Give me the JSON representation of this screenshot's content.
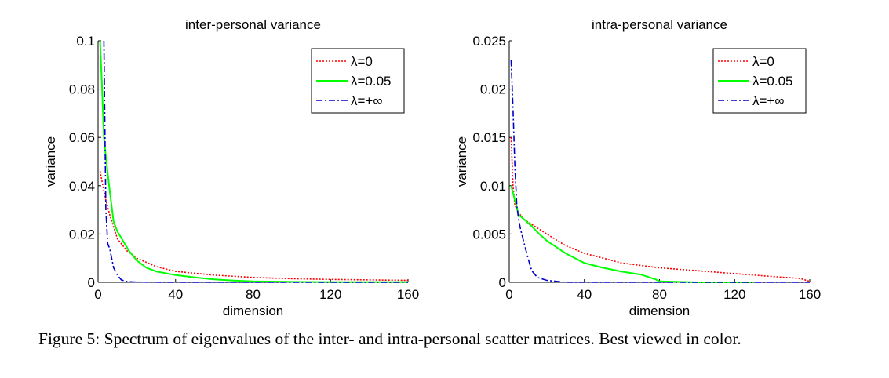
{
  "caption": "Figure 5: Spectrum of eigenvalues of the inter- and intra-personal scatter matrices. Best viewed in color.",
  "colors": {
    "lambda_0": "#ff0000",
    "lambda_005": "#00ff00",
    "lambda_inf": "#0000cc"
  },
  "chart_data": [
    {
      "type": "line",
      "title": "inter-personal variance",
      "xlabel": "dimension",
      "ylabel": "variance",
      "xlim": [
        0,
        160
      ],
      "ylim": [
        0,
        0.1
      ],
      "xticks": [
        0,
        40,
        80,
        120,
        160
      ],
      "xtick_labels": [
        "0",
        "40",
        "80",
        "120",
        "160"
      ],
      "yticks": [
        0,
        0.02,
        0.04,
        0.06,
        0.08,
        0.1
      ],
      "ytick_labels": [
        "0",
        "0.02",
        "0.04",
        "0.06",
        "0.08",
        "0.1"
      ],
      "legend_position": "top-right",
      "series": [
        {
          "name": "λ=0",
          "style": "dotted",
          "color": "#ff0000",
          "x": [
            1,
            2,
            4,
            6,
            8,
            10,
            15,
            20,
            30,
            40,
            60,
            80,
            100,
            120,
            140,
            160
          ],
          "y": [
            0.046,
            0.042,
            0.034,
            0.028,
            0.023,
            0.018,
            0.013,
            0.01,
            0.0065,
            0.0045,
            0.003,
            0.002,
            0.0015,
            0.0012,
            0.001,
            0.0008
          ]
        },
        {
          "name": "λ=0.05",
          "style": "solid",
          "color": "#00ff00",
          "x": [
            1,
            2,
            3,
            4,
            6,
            8,
            10,
            13,
            16,
            20,
            25,
            30,
            40,
            50,
            60,
            70,
            80,
            100,
            120,
            160
          ],
          "y": [
            0.1,
            0.082,
            0.06,
            0.052,
            0.038,
            0.025,
            0.021,
            0.017,
            0.013,
            0.009,
            0.006,
            0.0045,
            0.003,
            0.002,
            0.0012,
            0.0007,
            0.0004,
            0.0002,
            0.0001,
            0.0001
          ]
        },
        {
          "name": "λ=+∞",
          "style": "dashdot",
          "color": "#0000cc",
          "x": [
            3,
            4,
            5,
            6,
            7,
            8,
            10,
            12,
            15,
            20,
            40,
            160
          ],
          "y": [
            0.1,
            0.03,
            0.016,
            0.014,
            0.01,
            0.006,
            0.003,
            0.001,
            0.0003,
            0.0001,
            0.0,
            0.0
          ]
        }
      ]
    },
    {
      "type": "line",
      "title": "intra-personal variance",
      "xlabel": "dimension",
      "ylabel": "variance",
      "xlim": [
        0,
        160
      ],
      "ylim": [
        0,
        0.025
      ],
      "xticks": [
        0,
        40,
        80,
        120,
        160
      ],
      "xtick_labels": [
        "0",
        "40",
        "80",
        "120",
        "160"
      ],
      "yticks": [
        0,
        0.005,
        0.01,
        0.015,
        0.02,
        0.025
      ],
      "ytick_labels": [
        "0",
        "0.005",
        "0.01",
        "0.015",
        "0.02",
        "0.025"
      ],
      "legend_position": "top-right",
      "series": [
        {
          "name": "λ=0",
          "style": "dotted",
          "color": "#ff0000",
          "x": [
            1,
            2,
            3,
            5,
            8,
            12,
            16,
            20,
            30,
            40,
            60,
            80,
            100,
            120,
            140,
            155,
            160
          ],
          "y": [
            0.015,
            0.01,
            0.008,
            0.0072,
            0.0065,
            0.006,
            0.0055,
            0.005,
            0.0038,
            0.003,
            0.002,
            0.0015,
            0.0012,
            0.0009,
            0.0006,
            0.0004,
            0.0001
          ]
        },
        {
          "name": "λ=0.05",
          "style": "solid",
          "color": "#00ff00",
          "x": [
            1,
            3,
            5,
            8,
            12,
            16,
            20,
            30,
            40,
            50,
            60,
            70,
            78,
            80,
            100,
            130
          ],
          "y": [
            0.01,
            0.0085,
            0.007,
            0.0065,
            0.0058,
            0.005,
            0.0043,
            0.003,
            0.002,
            0.0015,
            0.0011,
            0.0008,
            0.0003,
            0.0001,
            0.0,
            0.0
          ]
        },
        {
          "name": "λ=+∞",
          "style": "dashdot",
          "color": "#0000cc",
          "x": [
            1,
            2,
            3,
            4,
            5,
            6,
            8,
            10,
            12,
            15,
            20,
            30,
            160
          ],
          "y": [
            0.023,
            0.018,
            0.012,
            0.008,
            0.0065,
            0.0055,
            0.004,
            0.0025,
            0.0012,
            0.0005,
            0.0002,
            0.0,
            0.0
          ]
        }
      ]
    }
  ]
}
